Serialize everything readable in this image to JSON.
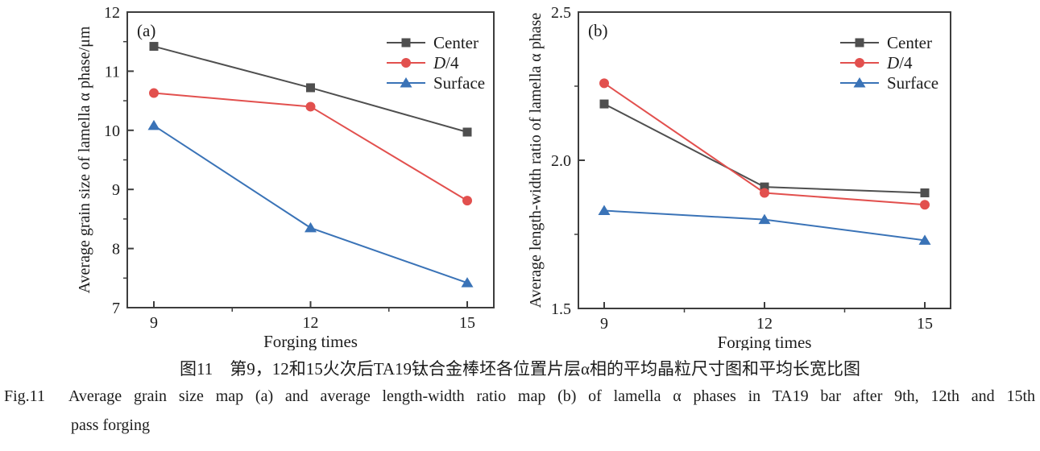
{
  "figure": {
    "caption_zh": "图11　第9，12和15火次后TA19钛合金棒坯各位置片层α相的平均晶粒尺寸图和平均长宽比图",
    "caption_en_label": "Fig.11",
    "caption_en_line1": "Average grain size map (a) and average length-width ratio map (b) of lamella α phases in TA19 bar after 9th, 12th and 15th",
    "caption_en_line2": "pass forging"
  },
  "colors": {
    "axis": "#3d3d3d",
    "center_series": "#4f4f4f",
    "d4_series": "#e2504e",
    "surface_series": "#3a73b7",
    "text": "#1c1c1c"
  },
  "chart_data": [
    {
      "type": "line",
      "panel_label": "(a)",
      "title": "",
      "xlabel": "Forging times",
      "ylabel": "Average grain size of lamella α phase/μm",
      "x": [
        9,
        12,
        15
      ],
      "xticks": [
        9,
        12,
        15
      ],
      "xlim": [
        9,
        15
      ],
      "ylim": [
        7,
        12
      ],
      "yticks": [
        7,
        8,
        9,
        10,
        11,
        12
      ],
      "ytick_labels": [
        "7",
        "8",
        "9",
        "10",
        "11",
        "12"
      ],
      "grid": false,
      "legend_position": "top-right",
      "series": [
        {
          "name": "Center",
          "marker": "square",
          "color": "#4f4f4f",
          "italic_first_char": false,
          "values": [
            11.42,
            10.72,
            9.97
          ]
        },
        {
          "name": "D/4",
          "marker": "circle",
          "color": "#e2504e",
          "italic_first_char": true,
          "values": [
            10.63,
            10.4,
            8.81
          ]
        },
        {
          "name": "Surface",
          "marker": "triangle",
          "color": "#3a73b7",
          "italic_first_char": false,
          "values": [
            10.08,
            8.35,
            7.42
          ]
        }
      ]
    },
    {
      "type": "line",
      "panel_label": "(b)",
      "title": "",
      "xlabel": "Forging times",
      "ylabel": "Average length-width ratio of lamella α phase",
      "x": [
        9,
        12,
        15
      ],
      "xticks": [
        9,
        12,
        15
      ],
      "xlim": [
        9,
        15
      ],
      "ylim": [
        1.5,
        2.5
      ],
      "yticks": [
        1.5,
        2.0,
        2.5
      ],
      "ytick_labels": [
        "1.5",
        "2.0",
        "2.5"
      ],
      "grid": false,
      "legend_position": "top-right",
      "series": [
        {
          "name": "Center",
          "marker": "square",
          "color": "#4f4f4f",
          "italic_first_char": false,
          "values": [
            2.19,
            1.91,
            1.89
          ]
        },
        {
          "name": "D/4",
          "marker": "circle",
          "color": "#e2504e",
          "italic_first_char": true,
          "values": [
            2.26,
            1.89,
            1.85
          ]
        },
        {
          "name": "Surface",
          "marker": "triangle",
          "color": "#3a73b7",
          "italic_first_char": false,
          "values": [
            1.83,
            1.8,
            1.73
          ]
        }
      ]
    }
  ]
}
